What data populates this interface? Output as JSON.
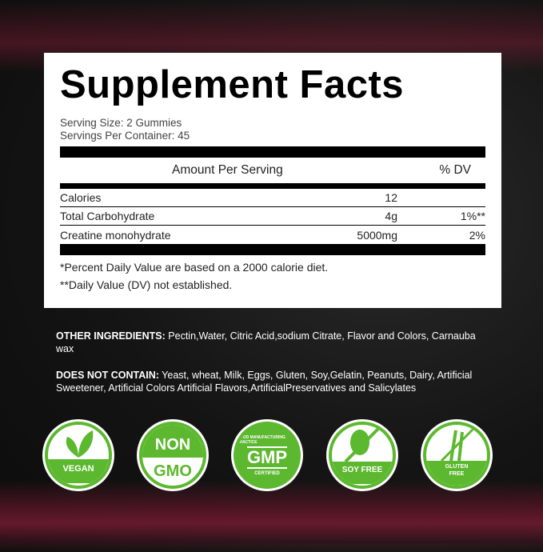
{
  "title": "Supplement Facts",
  "serving_size": "Serving Size: 2 Gummies",
  "servings_per_container": "Servings Per Container: 45",
  "header": {
    "amount": "Amount Per Serving",
    "dv": "% DV"
  },
  "rows": [
    {
      "name": "Calories",
      "amount": "12",
      "dv": ""
    },
    {
      "name": "Total Carbohydrate",
      "amount": "4g",
      "dv": "1%**"
    },
    {
      "name": "Creatine monohydrate",
      "amount": "5000mg",
      "dv": "2%"
    }
  ],
  "footnotes": [
    "*Percent Daily Value are based on a 2000 calorie diet.",
    "**Daily Value (DV) not established."
  ],
  "other_ingredients": {
    "label": "OTHER INGREDIENTS:",
    "text": " Pectin,Water, Citric Acid,sodium Citrate, Flavor and Colors, Carnauba wax"
  },
  "does_not_contain": {
    "label": "DOES NOT CONTAIN:",
    "text": " Yeast, wheat, Milk, Eggs, Gluten, Soy,Gelatin, Peanuts, Dairy, Artificial Sweetener, Artificial Colors Artificial Flavors,ArtificialPreservatives and Salicylates"
  },
  "badges": {
    "vegan": "VEGAN",
    "non": "NON",
    "gmo": "GMO",
    "gmp": "GMP",
    "gmp_top": "GOOD MANUFACTURING PRACTICE",
    "gmp_bottom": "CERTIFIED",
    "soy": "SOY FREE",
    "gluten1": "GLUTEN",
    "gluten2": "FREE"
  },
  "colors": {
    "badge_green": "#5cb82e",
    "accent_red": "#7a1c33"
  }
}
